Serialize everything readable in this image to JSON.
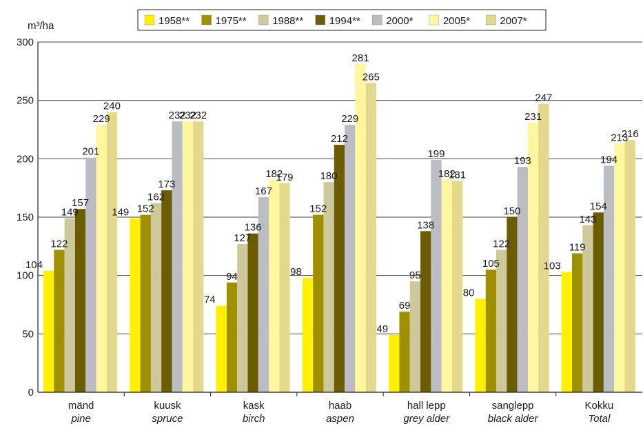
{
  "chart_data": {
    "type": "bar",
    "ylabel": "m³/ha",
    "ylim": [
      0,
      300
    ],
    "yticks": [
      0,
      50,
      100,
      150,
      200,
      250,
      300
    ],
    "grid": true,
    "legend_position": "top",
    "categories": [
      {
        "label": "mänd",
        "sublabel": "pine"
      },
      {
        "label": "kuusk",
        "sublabel": "spruce"
      },
      {
        "label": "kask",
        "sublabel": "birch"
      },
      {
        "label": "haab",
        "sublabel": "aspen"
      },
      {
        "label": "hall lepp",
        "sublabel": "grey alder"
      },
      {
        "label": "sanglepp",
        "sublabel": "black alder"
      },
      {
        "label": "Kokku",
        "sublabel": "Total"
      }
    ],
    "series": [
      {
        "name": "1958**",
        "color": "#ffef00",
        "values": [
          104,
          149,
          74,
          98,
          49,
          80,
          103
        ]
      },
      {
        "name": "1975**",
        "color": "#9e9000",
        "values": [
          122,
          152,
          94,
          152,
          69,
          105,
          119
        ]
      },
      {
        "name": "1988**",
        "color": "#cdc99a",
        "values": [
          149,
          162,
          127,
          180,
          95,
          122,
          143
        ]
      },
      {
        "name": "1994**",
        "color": "#6b5c00",
        "values": [
          157,
          173,
          136,
          212,
          138,
          150,
          154
        ]
      },
      {
        "name": "2000*",
        "color": "#bcbdc4",
        "values": [
          201,
          232,
          167,
          229,
          199,
          193,
          194
        ]
      },
      {
        "name": "2005*",
        "color": "#fff7a0",
        "values": [
          229,
          232,
          182,
          281,
          182,
          231,
          213
        ]
      },
      {
        "name": "2007*",
        "color": "#e2d98c",
        "values": [
          240,
          232,
          179,
          265,
          181,
          247,
          216
        ]
      }
    ]
  }
}
